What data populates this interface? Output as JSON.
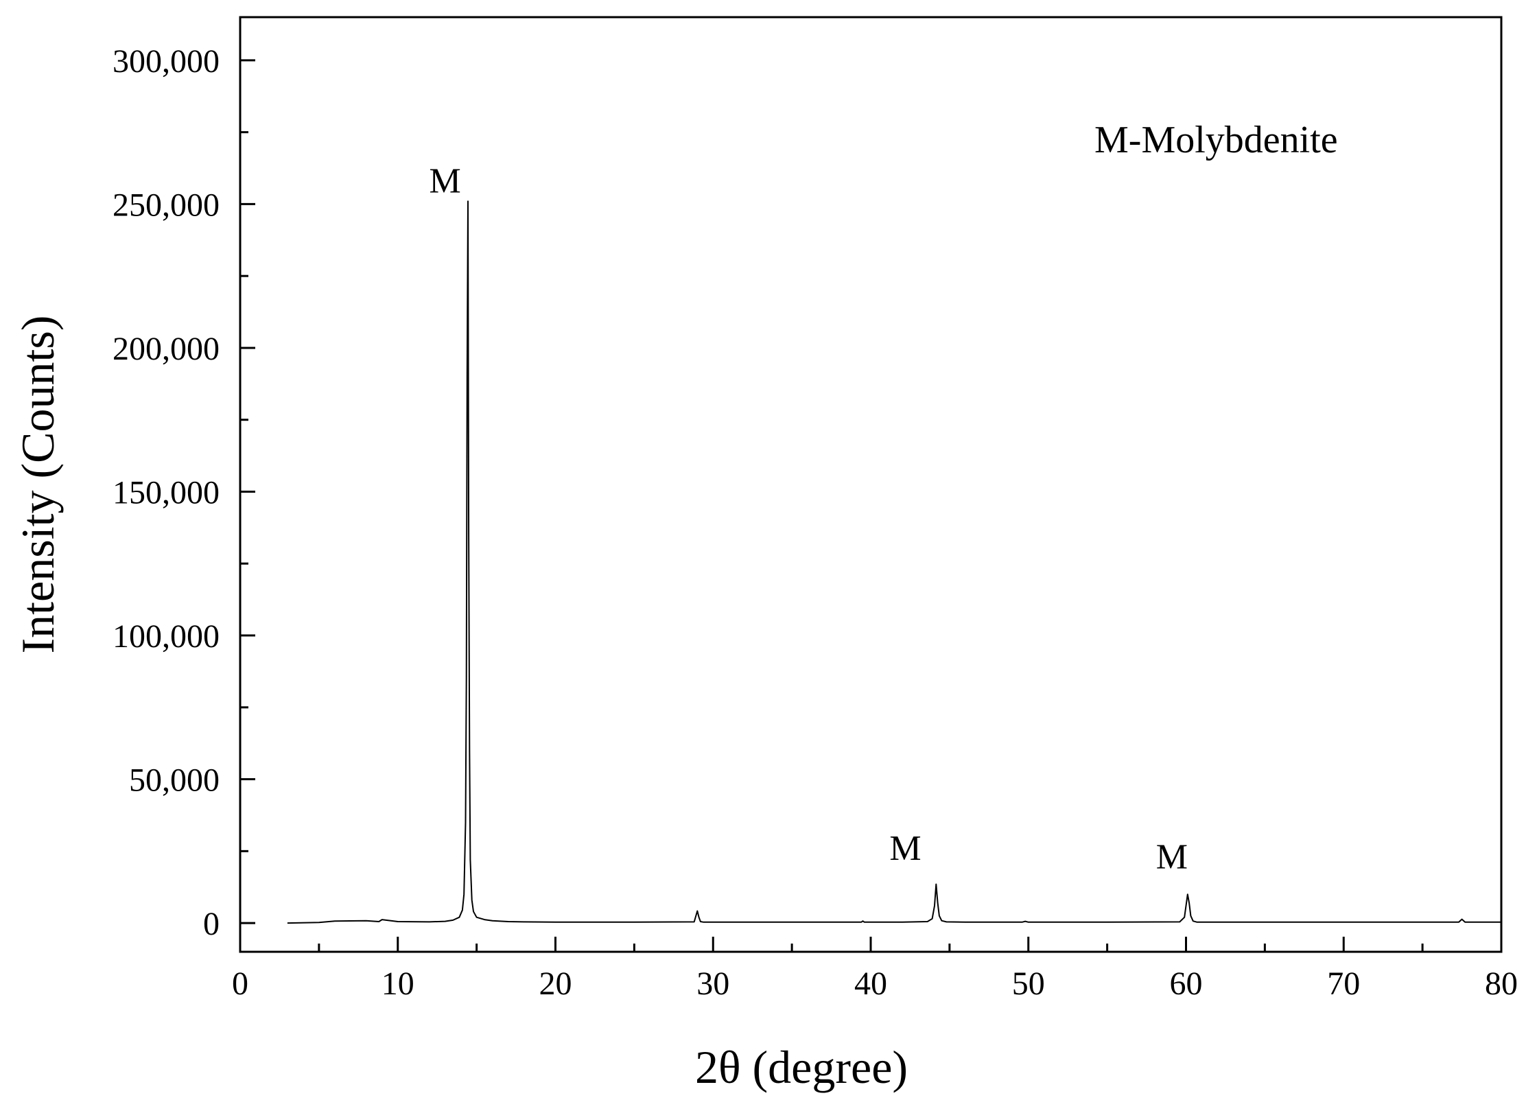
{
  "chart_data": {
    "type": "line",
    "title": "",
    "xlabel": "2θ (degree)",
    "ylabel": "Intensity (Counts)",
    "xlim": [
      0,
      80
    ],
    "ylim": [
      -10000,
      315000
    ],
    "x_ticks": [
      0,
      10,
      20,
      30,
      40,
      50,
      60,
      70,
      80
    ],
    "x_tick_labels": [
      "0",
      "10",
      "20",
      "30",
      "40",
      "50",
      "60",
      "70",
      "80"
    ],
    "y_ticks": [
      0,
      50000,
      100000,
      150000,
      200000,
      250000,
      300000
    ],
    "y_tick_labels": [
      "0",
      "50,000",
      "100,000",
      "150,000",
      "200,000",
      "250,000",
      "300,000"
    ],
    "grid": false,
    "legend_text": "M-Molybdenite",
    "legend_position": "top-right",
    "annotations": [
      {
        "text": "M",
        "x": 13.0,
        "y": 254000
      },
      {
        "text": "M",
        "x": 42.2,
        "y": 22000
      },
      {
        "text": "M",
        "x": 59.1,
        "y": 19000
      }
    ],
    "series": [
      {
        "color": "#000000",
        "x": [
          3.0,
          5.0,
          6.0,
          8.0,
          8.8,
          9.0,
          10.0,
          12.0,
          13.0,
          13.5,
          13.9,
          14.1,
          14.2,
          14.3,
          14.35,
          14.4,
          14.45,
          14.5,
          14.55,
          14.6,
          14.7,
          14.8,
          15.0,
          15.5,
          16.0,
          17.0,
          18.0,
          20.0,
          25.0,
          28.8,
          29.0,
          29.1,
          29.2,
          29.4,
          32.0,
          35.0,
          39.4,
          39.5,
          39.6,
          42.0,
          43.6,
          43.9,
          44.05,
          44.15,
          44.25,
          44.35,
          44.5,
          44.8,
          46.0,
          49.6,
          49.8,
          50.0,
          55.0,
          59.6,
          59.9,
          60.1,
          60.2,
          60.3,
          60.45,
          60.7,
          61.0,
          65.0,
          70.0,
          75.0,
          77.3,
          77.5,
          77.7,
          78.5,
          80.0
        ],
        "y": [
          0,
          200,
          700,
          800,
          500,
          1200,
          500,
          400,
          600,
          1000,
          2000,
          4500,
          10000,
          35000,
          85000,
          190000,
          251000,
          135000,
          60000,
          22000,
          8000,
          4000,
          2000,
          1200,
          800,
          500,
          400,
          300,
          300,
          400,
          4200,
          2000,
          500,
          300,
          300,
          300,
          300,
          700,
          300,
          300,
          500,
          1500,
          6000,
          13500,
          7000,
          2500,
          800,
          400,
          300,
          300,
          600,
          300,
          300,
          400,
          2000,
          10000,
          7000,
          2500,
          700,
          300,
          300,
          300,
          300,
          300,
          300,
          1300,
          300,
          300,
          300
        ]
      }
    ]
  }
}
